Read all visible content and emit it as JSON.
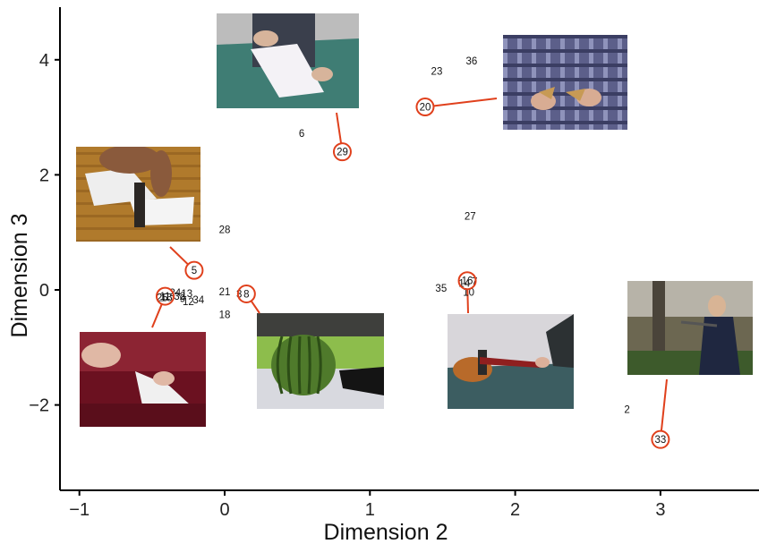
{
  "colors": {
    "highlight": "#e0401c",
    "axis": "#000000",
    "text": "#111111"
  },
  "chart_data": {
    "type": "scatter",
    "xlabel": "Dimension 2",
    "ylabel": "Dimension 3",
    "xlim": [
      -1.15,
      3.65
    ],
    "ylim": [
      -3.5,
      4.9
    ],
    "xticks": [
      -1,
      0,
      1,
      2,
      3
    ],
    "yticks": [
      -2,
      0,
      2,
      4
    ],
    "grid": false,
    "points": [
      {
        "label": "36",
        "x": 1.7,
        "y": 3.98
      },
      {
        "label": "23",
        "x": 1.46,
        "y": 3.8
      },
      {
        "label": "6",
        "x": 0.53,
        "y": 2.72
      },
      {
        "label": "28",
        "x": 0.0,
        "y": 1.05
      },
      {
        "label": "27",
        "x": 1.69,
        "y": 1.28
      },
      {
        "label": "35",
        "x": 1.49,
        "y": 0.03
      },
      {
        "label": "14",
        "x": 1.65,
        "y": 0.12
      },
      {
        "label": "7",
        "x": 1.72,
        "y": 0.15
      },
      {
        "label": "10",
        "x": 1.68,
        "y": -0.04
      },
      {
        "label": "21",
        "x": 0.0,
        "y": -0.03
      },
      {
        "label": "3",
        "x": 0.1,
        "y": -0.07
      },
      {
        "label": "18",
        "x": 0.0,
        "y": -0.43
      },
      {
        "label": "2",
        "x": 2.77,
        "y": -2.08
      },
      {
        "label": "13",
        "x": -0.26,
        "y": -0.06
      },
      {
        "label": "34",
        "x": -0.18,
        "y": -0.17
      },
      {
        "label": "32",
        "x": -0.31,
        "y": -0.11
      },
      {
        "label": "12",
        "x": -0.25,
        "y": -0.2
      },
      {
        "label": "24",
        "x": -0.34,
        "y": -0.05
      },
      {
        "label": "9",
        "x": -0.29,
        "y": -0.15
      },
      {
        "label": "25",
        "x": -0.43,
        "y": -0.13
      },
      {
        "label": "15",
        "x": -0.4,
        "y": -0.13
      }
    ],
    "highlighted": [
      {
        "label": "20",
        "x": 1.38,
        "y": 3.18
      },
      {
        "label": "29",
        "x": 0.81,
        "y": 2.4
      },
      {
        "label": "5",
        "x": -0.21,
        "y": 0.34
      },
      {
        "label": "8",
        "x": 0.15,
        "y": -0.07
      },
      {
        "label": "11",
        "x": -0.41,
        "y": -0.11
      },
      {
        "label": "16",
        "x": 1.67,
        "y": 0.16
      },
      {
        "label": "33",
        "x": 3.0,
        "y": -2.6
      }
    ]
  },
  "thumbnails": [
    {
      "name": "tearing-paper-photo",
      "scene": "paper",
      "point": "29"
    },
    {
      "name": "breaking-cracker-photo",
      "scene": "plaid",
      "point": "20"
    },
    {
      "name": "cutting-paper-knife-photo",
      "scene": "wood",
      "point": "5"
    },
    {
      "name": "cutting-paper-scissors-photo",
      "scene": "scissors",
      "point": "11"
    },
    {
      "name": "cutting-watermelon-photo",
      "scene": "melon",
      "point": "8"
    },
    {
      "name": "hammering-photo",
      "scene": "hammer",
      "point": "16"
    },
    {
      "name": "sawing-tree-photo",
      "scene": "tree",
      "point": "33"
    }
  ]
}
